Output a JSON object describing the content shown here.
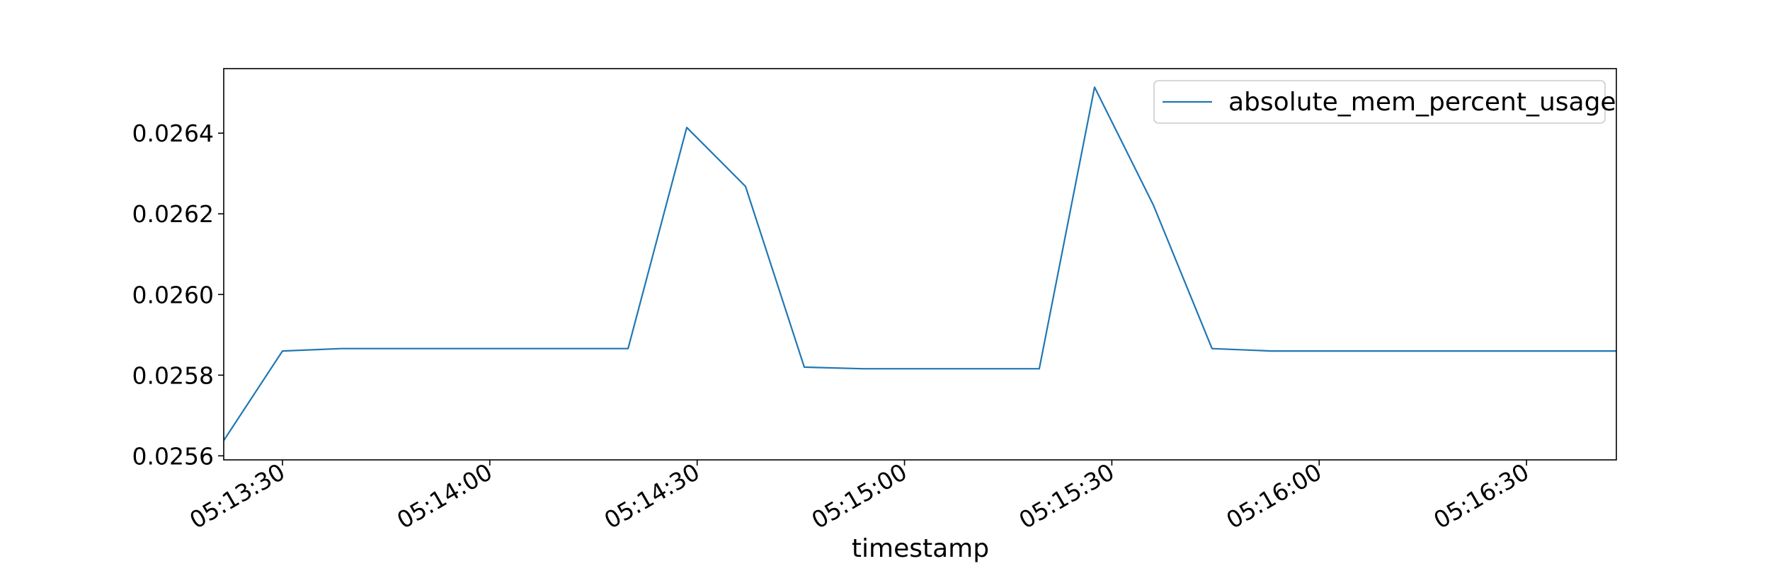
{
  "chart_data": {
    "type": "line",
    "title": "",
    "xlabel": "timestamp",
    "ylabel": "",
    "grid": false,
    "legend_position": "upper right",
    "x_range": [
      "05:13:21.5",
      "05:16:43"
    ],
    "ylim": [
      0.02559,
      0.02656
    ],
    "x_ticks": [
      "05:13:30",
      "05:14:00",
      "05:14:30",
      "05:15:00",
      "05:15:30",
      "05:16:00",
      "05:16:30"
    ],
    "y_ticks": [
      "0.0256",
      "0.0258",
      "0.0260",
      "0.0262",
      "0.0264"
    ],
    "series": [
      {
        "name": "absolute_mem_percent_usage",
        "color": "#1f77b4",
        "x": [
          "05:13:21.5",
          "05:13:30",
          "05:13:38.5",
          "05:14:20",
          "05:14:28.5",
          "05:14:37",
          "05:14:45.5",
          "05:14:54",
          "05:15:19.5",
          "05:15:27.5",
          "05:15:36",
          "05:15:44.5",
          "05:15:53",
          "05:16:43"
        ],
        "values": [
          0.025638,
          0.02586,
          0.025866,
          0.025866,
          0.026414,
          0.026268,
          0.02582,
          0.025816,
          0.025816,
          0.026514,
          0.026222,
          0.025866,
          0.02586,
          0.02586
        ]
      }
    ]
  }
}
